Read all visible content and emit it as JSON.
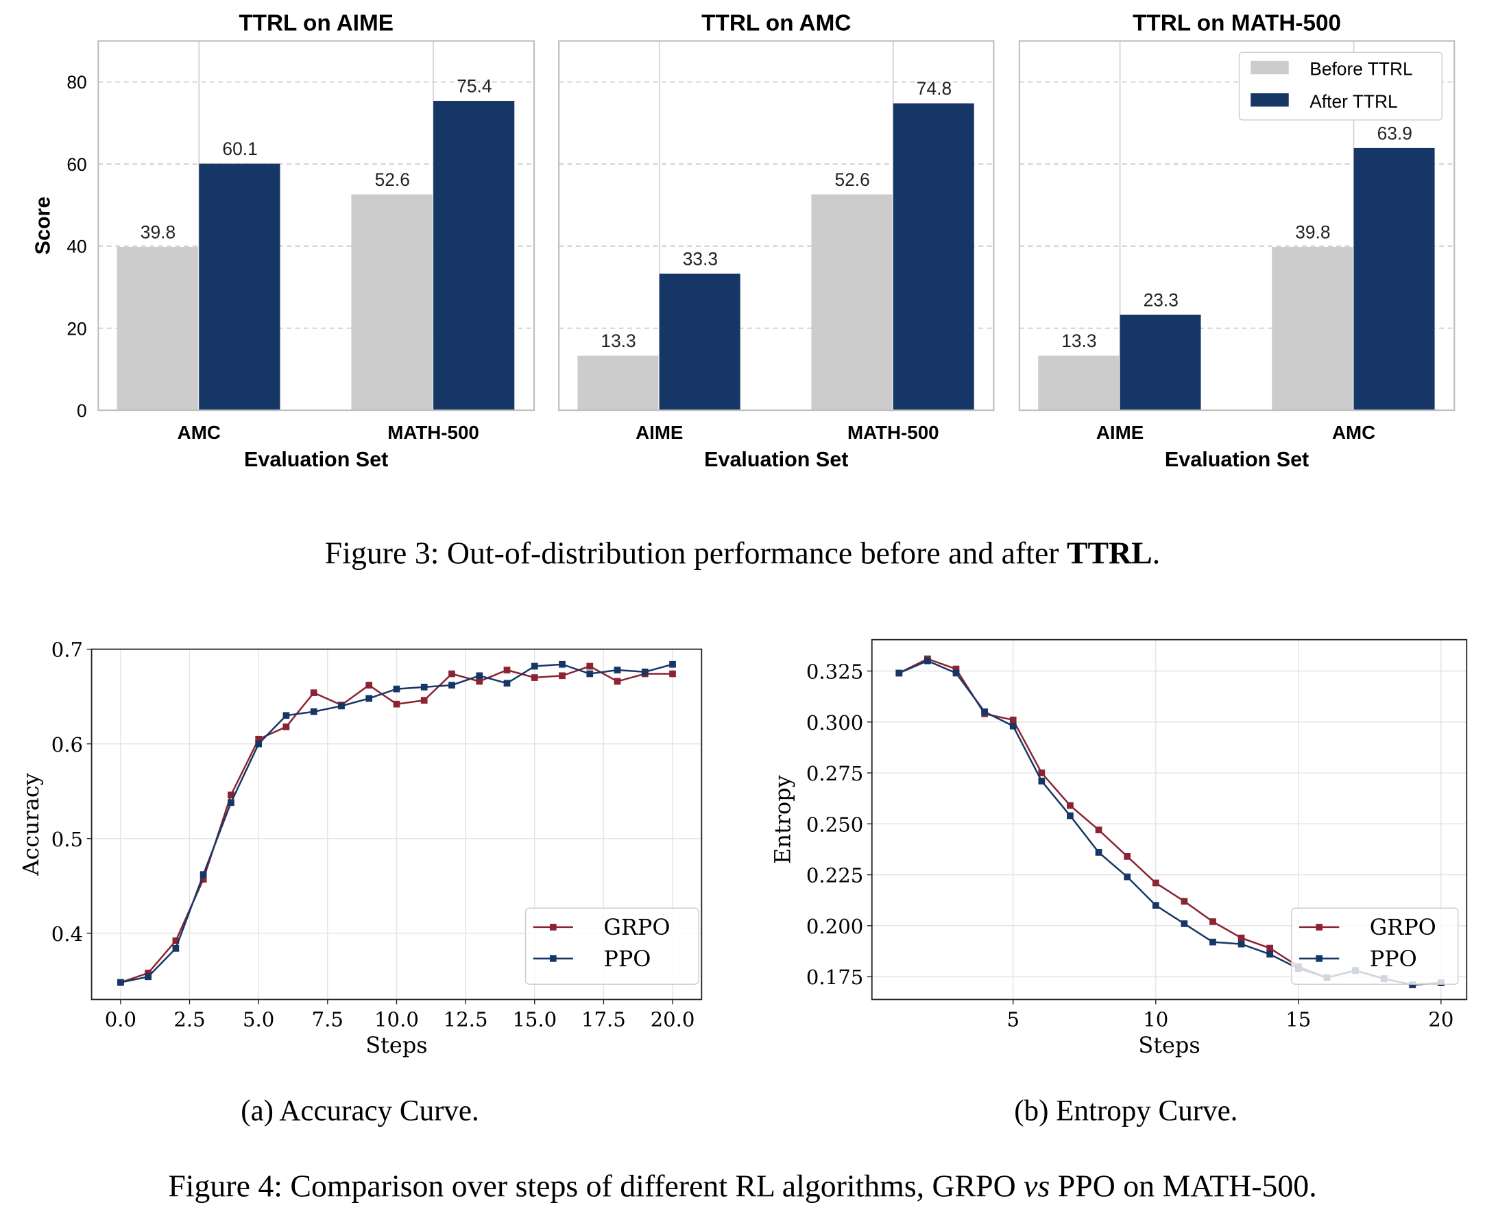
{
  "colors": {
    "before": "#cccccc",
    "after": "#163766",
    "grpo": "#8b2332",
    "ppo": "#163766"
  },
  "figure3": {
    "caption_prefix": "Figure 3: Out-of-distribution performance before and after ",
    "caption_bold": "TTRL",
    "caption_suffix": ".",
    "legend": [
      "Before TTRL",
      "After TTRL"
    ]
  },
  "figure4": {
    "caption_prefix": "Figure 4: Comparison over steps of different RL algorithms, GRPO ",
    "caption_italic": "vs",
    "caption_suffix": " PPO on MATH-500.",
    "sub_a": "(a) Accuracy Curve.",
    "sub_b": "(b) Entropy Curve."
  },
  "chart_data": [
    {
      "type": "bar",
      "title": "TTRL on AIME",
      "xlabel": "Evaluation Set",
      "ylabel": "Score",
      "ylim": [
        0,
        90
      ],
      "yticks": [
        0,
        20,
        40,
        60,
        80
      ],
      "categories": [
        "AMC",
        "MATH-500"
      ],
      "series": [
        {
          "name": "Before TTRL",
          "values": [
            39.8,
            52.6
          ]
        },
        {
          "name": "After TTRL",
          "values": [
            60.1,
            75.4
          ]
        }
      ]
    },
    {
      "type": "bar",
      "title": "TTRL on AMC",
      "xlabel": "Evaluation Set",
      "ylabel": "",
      "ylim": [
        0,
        90
      ],
      "categories": [
        "AIME",
        "MATH-500"
      ],
      "series": [
        {
          "name": "Before TTRL",
          "values": [
            13.3,
            52.6
          ]
        },
        {
          "name": "After TTRL",
          "values": [
            33.3,
            74.8
          ]
        }
      ]
    },
    {
      "type": "bar",
      "title": "TTRL on MATH-500",
      "xlabel": "Evaluation Set",
      "ylabel": "",
      "ylim": [
        0,
        90
      ],
      "legend": "top-right",
      "categories": [
        "AIME",
        "AMC"
      ],
      "series": [
        {
          "name": "Before TTRL",
          "values": [
            13.3,
            39.8
          ]
        },
        {
          "name": "After TTRL",
          "values": [
            23.3,
            63.9
          ]
        }
      ]
    },
    {
      "type": "line",
      "xlabel": "Steps",
      "ylabel": "Accuracy",
      "grid": true,
      "legend": "bottom-right",
      "xlim": [
        -1.05,
        21.05
      ],
      "ylim": [
        0.33,
        0.7
      ],
      "xticks": [
        "0.0",
        "2.5",
        "5.0",
        "7.5",
        "10.0",
        "12.5",
        "15.0",
        "17.5",
        "20.0"
      ],
      "yticks": [
        "0.4",
        "0.5",
        "0.6",
        "0.7"
      ],
      "x": [
        0,
        1,
        2,
        3,
        4,
        5,
        6,
        7,
        8,
        9,
        10,
        11,
        12,
        13,
        14,
        15,
        16,
        17,
        18,
        19,
        20
      ],
      "series": [
        {
          "name": "GRPO",
          "values": [
            0.348,
            0.358,
            0.392,
            0.457,
            0.546,
            0.605,
            0.618,
            0.654,
            0.641,
            0.662,
            0.642,
            0.646,
            0.674,
            0.666,
            0.678,
            0.67,
            0.672,
            0.682,
            0.666,
            0.674,
            0.674
          ]
        },
        {
          "name": "PPO",
          "values": [
            0.348,
            0.354,
            0.384,
            0.462,
            0.538,
            0.6,
            0.63,
            0.634,
            0.64,
            0.648,
            0.658,
            0.66,
            0.662,
            0.672,
            0.664,
            0.682,
            0.684,
            0.674,
            0.678,
            0.676,
            0.684
          ]
        }
      ]
    },
    {
      "type": "line",
      "xlabel": "Steps",
      "ylabel": "Entropy",
      "grid": true,
      "legend": "bottom-right",
      "xlim": [
        0.05,
        20.9
      ],
      "ylim": [
        0.1638,
        0.3404
      ],
      "xticks": [
        "5",
        "10",
        "15",
        "20"
      ],
      "yticks": [
        "0.175",
        "0.200",
        "0.225",
        "0.250",
        "0.275",
        "0.300",
        "0.325"
      ],
      "x": [
        1,
        2,
        3,
        4,
        5,
        6,
        7,
        8,
        9,
        10,
        11,
        12,
        13,
        14,
        15,
        16,
        17,
        18,
        19,
        20
      ],
      "series": [
        {
          "name": "GRPO",
          "values": [
            0.324,
            0.331,
            0.326,
            0.304,
            0.301,
            0.275,
            0.259,
            0.247,
            0.234,
            0.221,
            0.212,
            0.202,
            0.194,
            0.189,
            0.18,
            0.1745,
            0.178,
            0.174,
            0.171,
            0.172
          ]
        },
        {
          "name": "PPO",
          "values": [
            0.324,
            0.33,
            0.324,
            0.305,
            0.298,
            0.271,
            0.254,
            0.236,
            0.224,
            0.21,
            0.201,
            0.192,
            0.191,
            0.186,
            0.179,
            0.1745,
            0.178,
            0.174,
            0.171,
            0.172
          ]
        }
      ]
    }
  ]
}
